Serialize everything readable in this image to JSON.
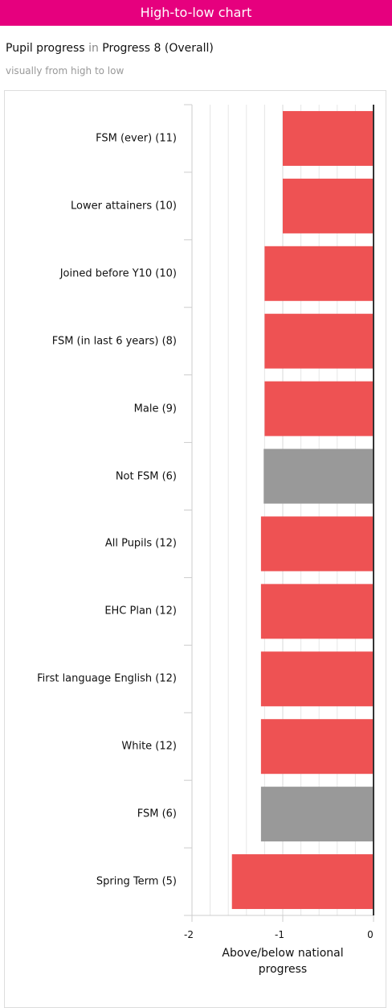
{
  "header": {
    "title": "High-to-low chart"
  },
  "chart_data": {
    "type": "bar",
    "orientation": "horizontal",
    "title_parts": [
      "Pupil progress",
      "in",
      "Progress 8 (Overall)"
    ],
    "subtitle": "visually from high to low",
    "categories": [
      "FSM (ever) (11)",
      "Lower attainers (10)",
      "Joined before Y10 (10)",
      "FSM (in last 6 years) (8)",
      "Male (9)",
      "Not FSM (6)",
      "All Pupils (12)",
      "EHC Plan (12)",
      "First language English (12)",
      "White (12)",
      "FSM (6)",
      "Spring Term (5)"
    ],
    "values": [
      -1.0,
      -1.0,
      -1.2,
      -1.2,
      -1.2,
      -1.21,
      -1.24,
      -1.24,
      -1.24,
      -1.24,
      -1.24,
      -1.56
    ],
    "colors": [
      "#ee5253",
      "#ee5253",
      "#ee5253",
      "#ee5253",
      "#ee5253",
      "#999999",
      "#ee5253",
      "#ee5253",
      "#ee5253",
      "#ee5253",
      "#999999",
      "#ee5253"
    ],
    "xlim": [
      -2,
      0
    ],
    "xticks": [
      -2,
      -1,
      0
    ],
    "minor_xticks": [
      -1.8,
      -1.6,
      -1.4,
      -1.2,
      -0.8,
      -0.6,
      -0.4,
      -0.2
    ],
    "xlabel": "Above/below national progress",
    "grid": true
  }
}
